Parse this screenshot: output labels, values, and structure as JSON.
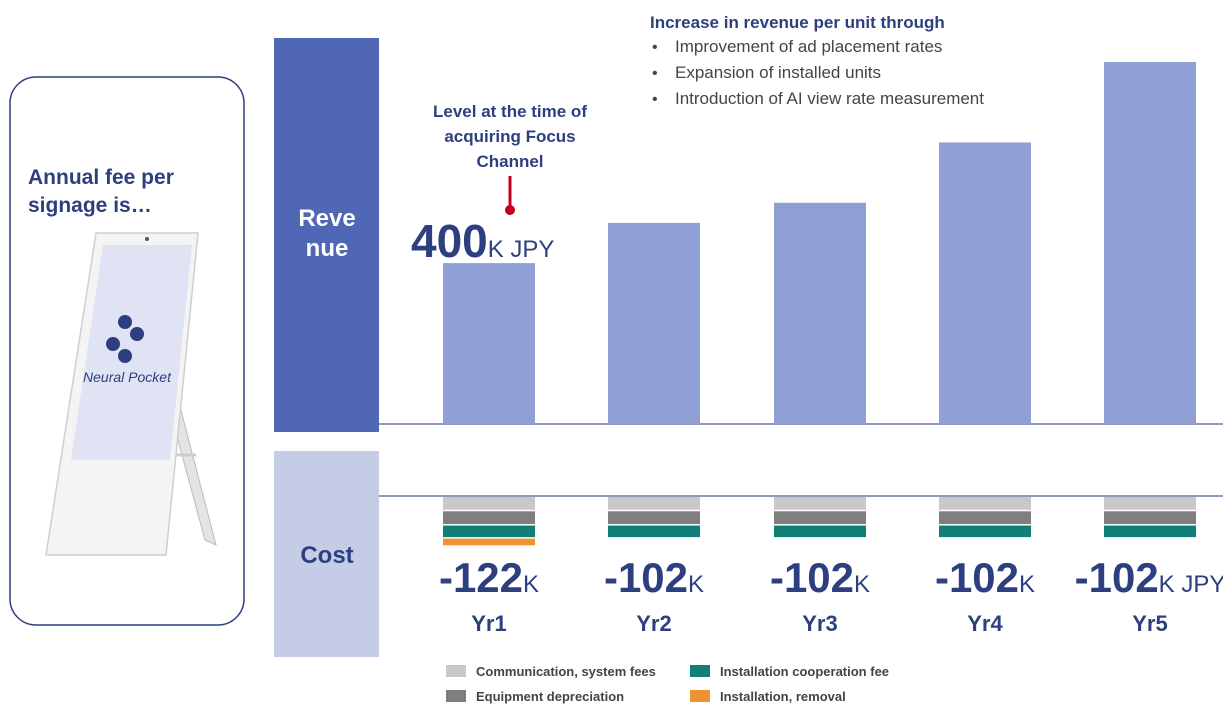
{
  "chart_data": {
    "type": "bar",
    "card_title_lines": [
      "Annual fee per",
      "signage is…"
    ],
    "logo_text": "Neural Pocket",
    "revenue_label_lines": [
      "Reve",
      "nue"
    ],
    "cost_label": "Cost",
    "headline": "Increase in revenue per unit through",
    "bullets": [
      "Improvement of ad placement rates",
      "Expansion of installed units",
      "Introduction of AI view rate measurement"
    ],
    "annotation_lines": [
      "Level at the time of",
      "acquiring Focus",
      "Channel"
    ],
    "categories": [
      "Yr1",
      "Yr2",
      "Yr3",
      "Yr4",
      "Yr5"
    ],
    "values": [
      400,
      500,
      550,
      700,
      900
    ],
    "color": "#8f9fd3",
    "revenue_unit": "K JPY",
    "ylim": [
      0,
      900
    ],
    "cost_ylim": [
      -125,
      0
    ],
    "cost_series": [
      {
        "name": "Communication, system fees",
        "color": "#c8c8c8",
        "values": [
          -35,
          -35,
          -35,
          -35,
          -35
        ]
      },
      {
        "name": "Equipment depreciation",
        "color": "#7f7f7f",
        "values": [
          -35,
          -35,
          -35,
          -35,
          -35
        ]
      },
      {
        "name": "Installation cooperation fee",
        "color": "#0f7f78",
        "values": [
          -32,
          -32,
          -32,
          -32,
          -32
        ]
      },
      {
        "name": "Installation, removal",
        "color": "#f0922e",
        "values": [
          -20,
          null,
          null,
          null,
          null
        ]
      }
    ],
    "cost_totals": [
      -122,
      -102,
      -102,
      -102,
      -102
    ],
    "cost_units": [
      "K",
      "K",
      "K",
      "K",
      "K JPY"
    ]
  }
}
